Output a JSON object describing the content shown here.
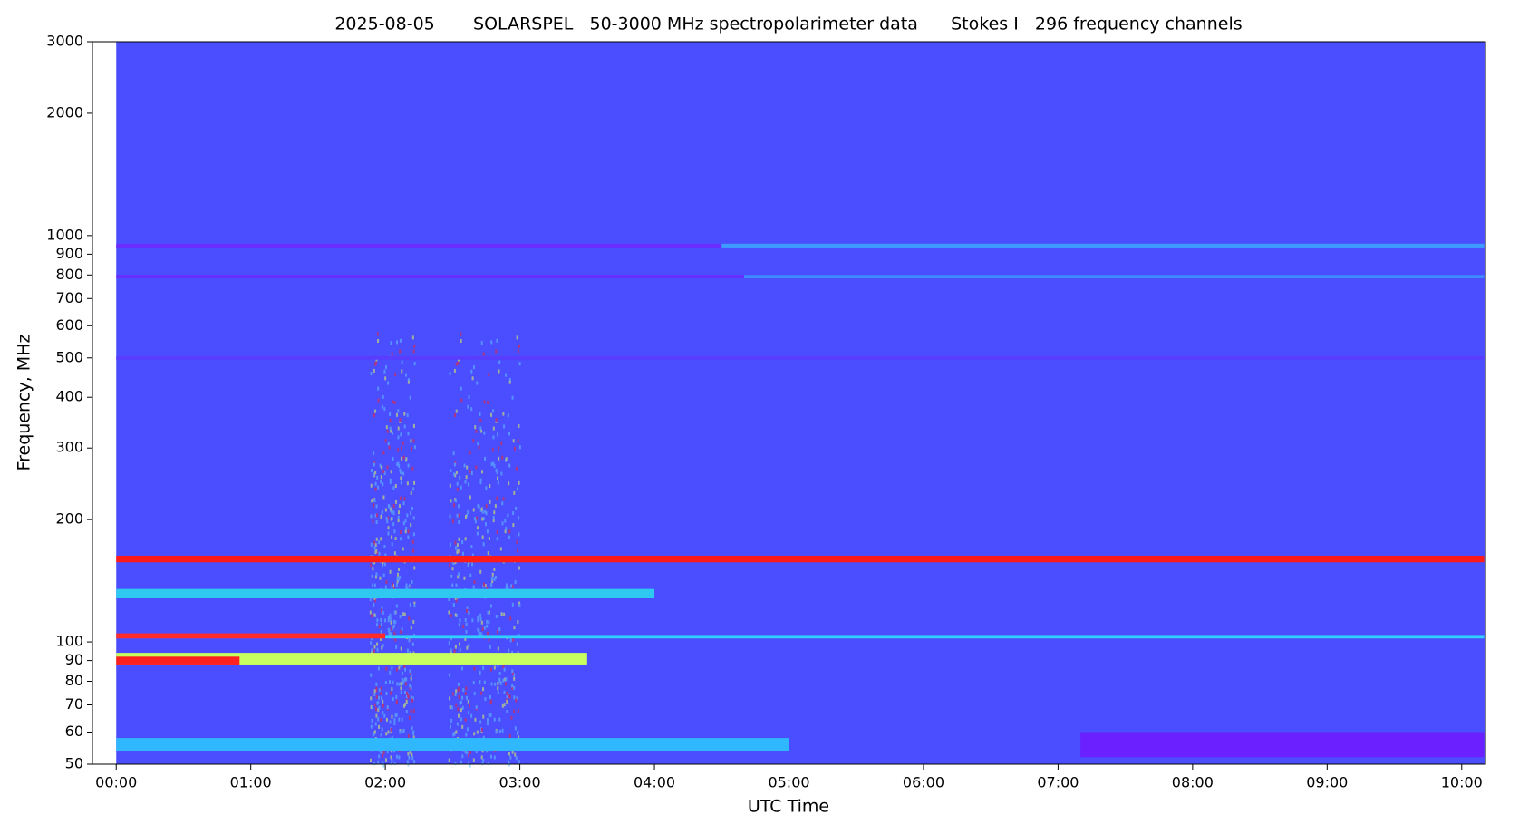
{
  "chart_data": {
    "type": "heatmap",
    "title": "2025-08-05       SOLARSPEL   50-3000 MHz spectropolarimeter data      Stokes I   296 frequency channels",
    "xlabel": "UTC Time",
    "ylabel": "Frequency, MHz",
    "log_y": true,
    "background": "#4b4eff",
    "data_start": 0,
    "xlim": [
      -10.6,
      610.6
    ],
    "xticks": [
      {
        "value": 0,
        "label": "00:00"
      },
      {
        "value": 60,
        "label": "01:00"
      },
      {
        "value": 120,
        "label": "02:00"
      },
      {
        "value": 180,
        "label": "03:00"
      },
      {
        "value": 240,
        "label": "04:00"
      },
      {
        "value": 300,
        "label": "05:00"
      },
      {
        "value": 360,
        "label": "06:00"
      },
      {
        "value": 420,
        "label": "07:00"
      },
      {
        "value": 480,
        "label": "08:00"
      },
      {
        "value": 540,
        "label": "09:00"
      },
      {
        "value": 600,
        "label": "10:00"
      }
    ],
    "ylim": [
      50,
      3000
    ],
    "yticks": [
      50,
      60,
      70,
      80,
      90,
      100,
      200,
      300,
      400,
      500,
      600,
      700,
      800,
      900,
      1000,
      2000,
      3000
    ],
    "bands": [
      {
        "low": 935,
        "high": 955,
        "start": 0,
        "end": 270,
        "color": "#6a2cff"
      },
      {
        "low": 935,
        "high": 955,
        "start": 270,
        "end": 610,
        "color": "#3e9cff"
      },
      {
        "low": 785,
        "high": 800,
        "start": 0,
        "end": 280,
        "color": "#6a2cff"
      },
      {
        "low": 785,
        "high": 800,
        "start": 280,
        "end": 610,
        "color": "#3e8cff"
      },
      {
        "low": 495,
        "high": 505,
        "start": 0,
        "end": 610,
        "color": "#5a3cff"
      },
      {
        "low": 157,
        "high": 163,
        "start": 0,
        "end": 610,
        "color": "#ff1a1a"
      },
      {
        "low": 128,
        "high": 135,
        "start": 0,
        "end": 240,
        "color": "#2ec8f0"
      },
      {
        "low": 102,
        "high": 105,
        "start": 0,
        "end": 120,
        "color": "#ff2a2a"
      },
      {
        "low": 102,
        "high": 104,
        "start": 120,
        "end": 610,
        "color": "#30d0ff"
      },
      {
        "low": 88,
        "high": 94,
        "start": 0,
        "end": 210,
        "color": "#c8ff60"
      },
      {
        "low": 88,
        "high": 92,
        "start": 0,
        "end": 55,
        "color": "#ff2020"
      },
      {
        "low": 54,
        "high": 58,
        "start": 0,
        "end": 300,
        "color": "#30b8ff"
      },
      {
        "low": 52,
        "high": 60,
        "start": 430,
        "end": 610,
        "color": "#6a20ff"
      }
    ],
    "bursts": [
      {
        "low": 50,
        "high": 600,
        "start": 113,
        "end": 133,
        "color": "#60c8ff"
      },
      {
        "low": 50,
        "high": 600,
        "start": 148,
        "end": 180,
        "color": "#60c8ff"
      }
    ]
  }
}
